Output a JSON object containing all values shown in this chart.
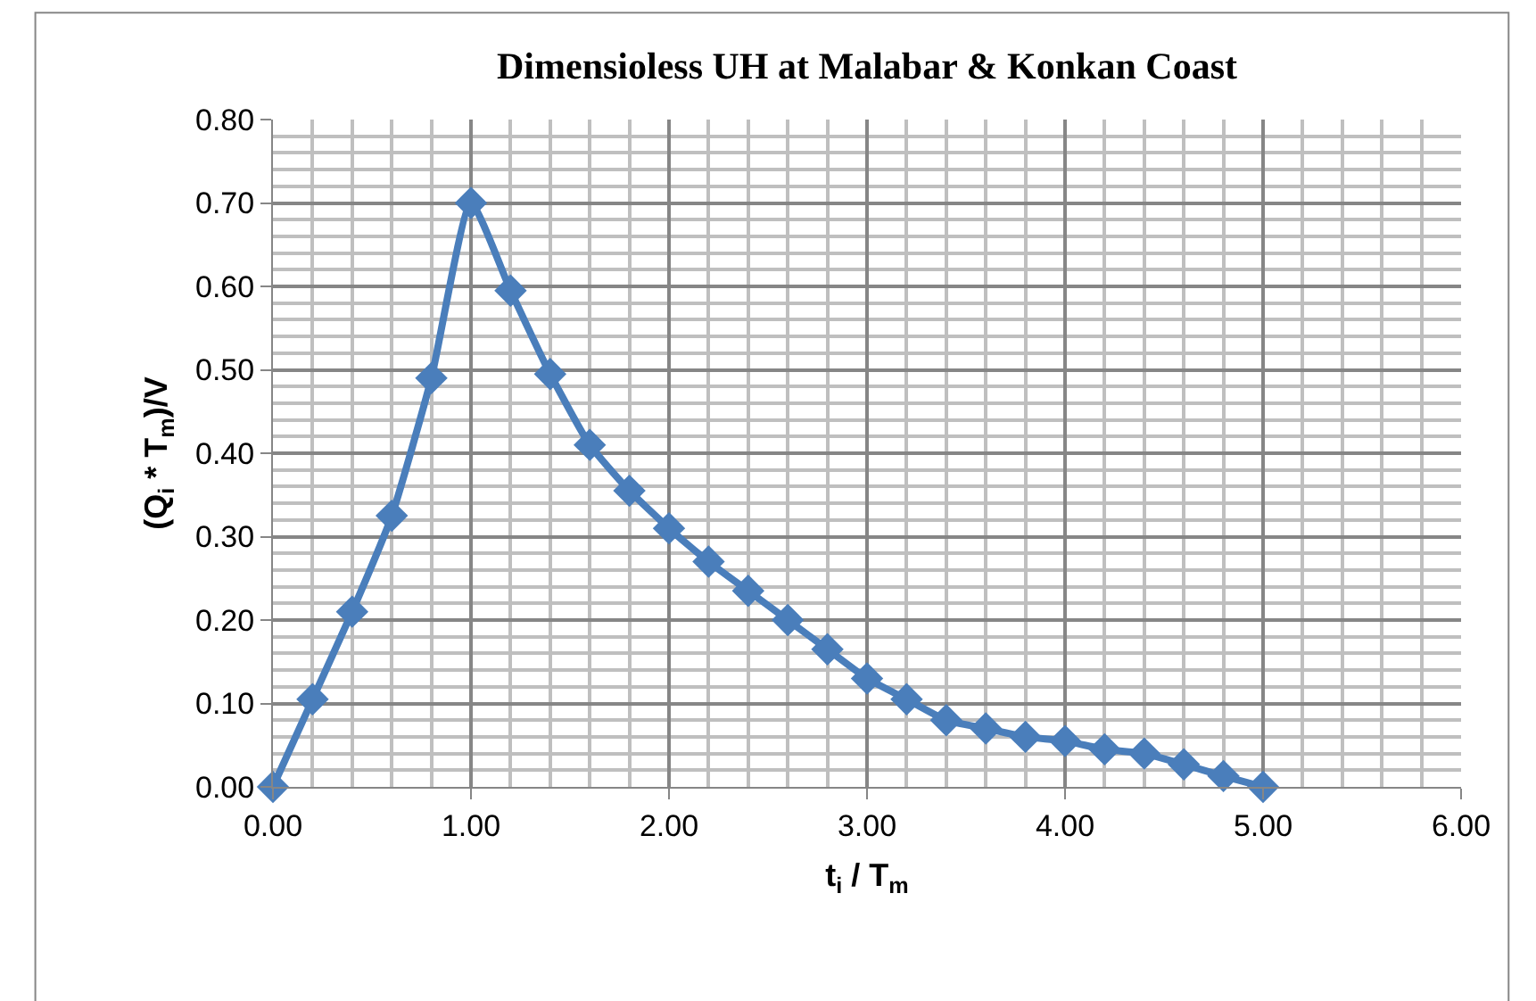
{
  "chart_data": {
    "type": "line",
    "title": "Dimensioless UH at Malabar & Konkan Coast",
    "xlabel": "t$_{i}$ / T$_{m}$",
    "ylabel": "(Q$_{i}$ * T$_{m}$)/V",
    "x": [
      0,
      0.2,
      0.4,
      0.6,
      0.8,
      1.0,
      1.2,
      1.4,
      1.6,
      1.8,
      2.0,
      2.2,
      2.4,
      2.6,
      2.8,
      3.0,
      3.2,
      3.4,
      3.6,
      3.8,
      4.0,
      4.2,
      4.4,
      4.6,
      4.8,
      5.0
    ],
    "series": [
      {
        "color": "#4a7ebb",
        "values": [
          0,
          0.105,
          0.21,
          0.325,
          0.49,
          0.7,
          0.595,
          0.495,
          0.41,
          0.355,
          0.31,
          0.27,
          0.235,
          0.2,
          0.165,
          0.13,
          0.105,
          0.08,
          0.07,
          0.06,
          0.055,
          0.045,
          0.04,
          0.027,
          0.013,
          0.0
        ]
      }
    ],
    "xlim": [
      0,
      6
    ],
    "ylim": [
      0,
      0.8
    ],
    "xticks": [
      {
        "value": 0,
        "label": "0.00"
      },
      {
        "value": 1,
        "label": "1.00"
      },
      {
        "value": 2,
        "label": "2.00"
      },
      {
        "value": 3,
        "label": "3.00"
      },
      {
        "value": 4,
        "label": "4.00"
      },
      {
        "value": 5,
        "label": "5.00"
      },
      {
        "value": 6,
        "label": "6.00"
      }
    ],
    "yticks": [
      {
        "value": 0,
        "label": "0.00"
      },
      {
        "value": 0.1,
        "label": "0.10"
      },
      {
        "value": 0.2,
        "label": "0.20"
      },
      {
        "value": 0.3,
        "label": "0.30"
      },
      {
        "value": 0.4,
        "label": "0.40"
      },
      {
        "value": 0.5,
        "label": "0.50"
      },
      {
        "value": 0.6,
        "label": "0.60"
      },
      {
        "value": 0.7,
        "label": "0.70"
      },
      {
        "value": 0.8,
        "label": "0.80"
      }
    ],
    "grid": true,
    "marker": "diamond",
    "line_style": "solid"
  }
}
